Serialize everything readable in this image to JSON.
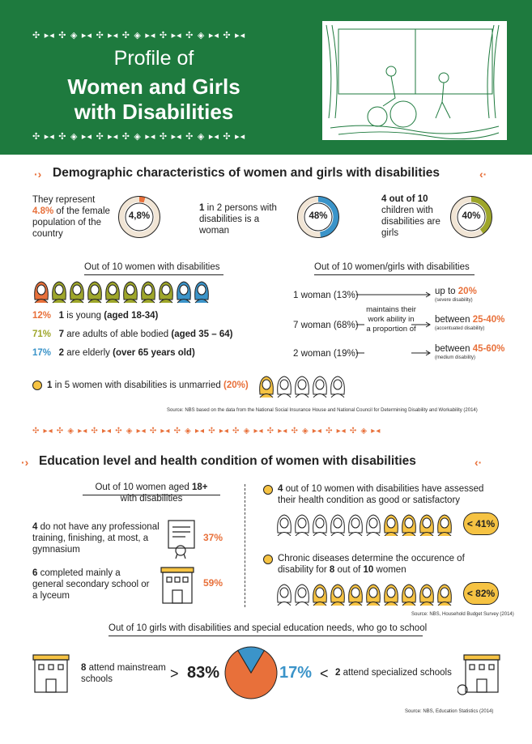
{
  "header": {
    "title_line1": "Profile of",
    "title_line2": "Women and Girls",
    "title_line3": "with Disabilities",
    "ornament": "✣ ▸◂ ✣ ◈ ▸◂ ✣ ▸◂ ✣ ◈ ▸◂ ✣ ▸◂ ✣ ◈ ▸◂ ✣ ▸◂"
  },
  "demographic": {
    "title": "Demographic characteristics of women and girls with disabilities",
    "stat1_text": "They represent",
    "stat1_value": "4.8%",
    "stat1_text2": "of the female population of the country",
    "stat1_donut": "4,8%",
    "stat1_fraction": 0.048,
    "stat2_value": "1",
    "stat2_text": "in 2 persons with disabilities is a woman",
    "stat2_donut": "48%",
    "stat2_fraction": 0.48,
    "stat3_value": "4 out of 10",
    "stat3_text": "children with disabilities are girls",
    "stat3_donut": "40%",
    "stat3_fraction": 0.4,
    "out_of_women": "Out of 10 women with disabilities",
    "age_rows": [
      {
        "pct": "12%",
        "num": "1",
        "text": "is young",
        "bold": "(aged 18-34)",
        "color": "#e8703a"
      },
      {
        "pct": "71%",
        "num": "7",
        "text": "are adults of able bodied",
        "bold": "(aged 35 – 64)",
        "color": "#9ea62a"
      },
      {
        "pct": "17%",
        "num": "2",
        "text": "are elderly",
        "bold": "(over 65 years old)",
        "color": "#3b94c9"
      }
    ],
    "out_of_girls": "Out of 10 women/girls with disabilities",
    "work_rows": [
      {
        "left": "1 woman (13%)",
        "right": "up to 20%",
        "sub": "(severe disability)"
      },
      {
        "left": "7 woman (68%)",
        "right": "between 25-40%",
        "sub": "(accentuated disability)"
      },
      {
        "left": "2 woman (19%)",
        "right": "between 45-60%",
        "sub": "(medium disability)"
      }
    ],
    "maintains_text": "maintains their work ability in a proportion of",
    "unmarried_num": "1",
    "unmarried_text": "in 5 women with disabilities is unmarried",
    "unmarried_pct": "(20%)",
    "source": "Source: NBS based on the data from the National Social Insurance House and National Council for Determining Disability and Workability (2014)"
  },
  "education": {
    "title": "Education level and health condition of women with disabilities",
    "out_of_aged_a": "Out of 10 women aged",
    "out_of_aged_b": "18+",
    "out_of_aged_c": "with disabilities",
    "edu1_num": "4",
    "edu1_text": "do not have any professional training, finishing, at most, a gymnasium",
    "edu1_pct": "37%",
    "edu2_num": "6",
    "edu2_text": "completed mainly a general secondary school or a lyceum",
    "edu2_pct": "59%",
    "health1_num": "4",
    "health1_text": "out of 10 women with disabilities have assessed their health condition as good or satisfactory",
    "health1_pct": "41%",
    "health2_text": "Chronic diseases determine the occurence of disability for",
    "health2_num": "8",
    "health2_mid": "out of",
    "health2_num2": "10",
    "health2_end": "women",
    "health2_pct": "82%",
    "source1": "Source: NBS, Household Budget Survey (2014)",
    "girls_title": "Out of 10 girls with disabilities and special education needs, who go to school",
    "mainstream_num": "8",
    "mainstream_text": "attend mainstream schools",
    "mainstream_pct": "83%",
    "special_pct": "17%",
    "special_num": "2",
    "special_text": "attend specialized schools",
    "source2": "Source: NBS, Education Statistics (2014)"
  },
  "chart_data": {
    "type": "pie",
    "categories": [
      "mainstream schools",
      "specialized schools"
    ],
    "values": [
      83,
      17
    ],
    "colors": [
      "#e8703a",
      "#3b94c9"
    ]
  }
}
